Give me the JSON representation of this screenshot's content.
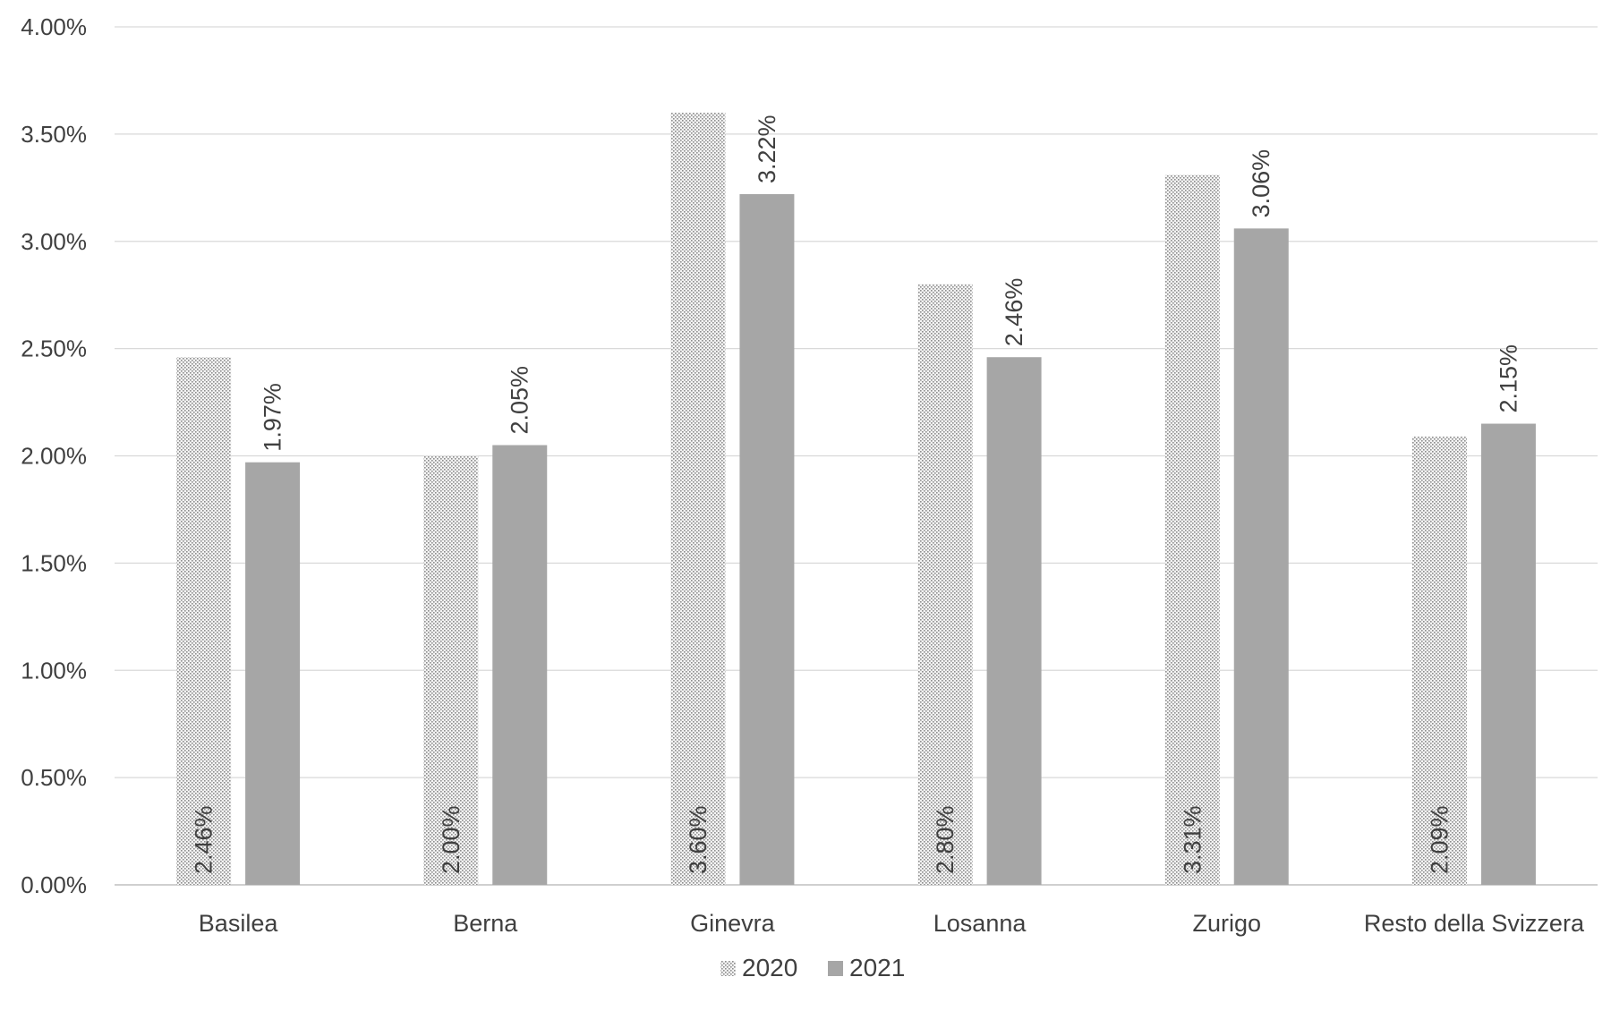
{
  "chart_data": {
    "type": "bar",
    "title": "",
    "xlabel": "",
    "ylabel": "",
    "categories": [
      "Basilea",
      "Berna",
      "Ginevra",
      "Losanna",
      "Zurigo",
      "Resto della Svizzera"
    ],
    "series": [
      {
        "name": "2020",
        "values": [
          2.46,
          2.0,
          3.6,
          2.8,
          3.31,
          2.09
        ],
        "labels": [
          "2.46%",
          "2.00%",
          "3.60%",
          "2.80%",
          "3.31%",
          "2.09%"
        ],
        "fill": "dotted-pattern",
        "color": "#bfbfbf"
      },
      {
        "name": "2021",
        "values": [
          1.97,
          2.05,
          3.22,
          2.46,
          3.06,
          2.15
        ],
        "labels": [
          "1.97%",
          "2.05%",
          "3.22%",
          "2.46%",
          "3.06%",
          "2.15%"
        ],
        "fill": "solid",
        "color": "#a6a6a6"
      }
    ],
    "ylim": [
      0,
      4
    ],
    "yticks": [
      0,
      0.5,
      1,
      1.5,
      2,
      2.5,
      3,
      3.5,
      4
    ],
    "ytick_labels": [
      "0.00%",
      "0.50%",
      "1.00%",
      "1.50%",
      "2.00%",
      "2.50%",
      "3.00%",
      "3.50%",
      "4.00%"
    ],
    "grid": true,
    "legend_position": "bottom",
    "colors": {
      "gridline": "#d9d9d9",
      "axis": "#bfbfbf",
      "text": "#404040"
    }
  }
}
